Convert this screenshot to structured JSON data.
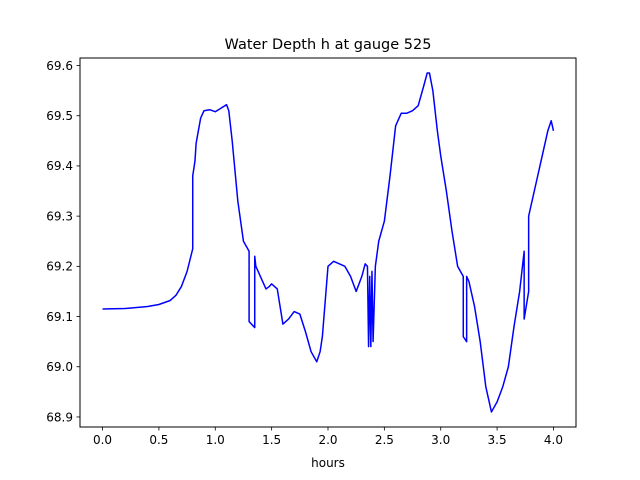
{
  "chart_data": {
    "type": "line",
    "title": "Water Depth h at gauge 525",
    "xlabel": "hours",
    "ylabel": "",
    "xlim": [
      -0.2,
      4.2
    ],
    "ylim": [
      68.88,
      69.615
    ],
    "x_ticks": [
      "0.0",
      "0.5",
      "1.0",
      "1.5",
      "2.0",
      "2.5",
      "3.0",
      "3.5",
      "4.0"
    ],
    "y_ticks": [
      "68.9",
      "69.0",
      "69.1",
      "69.2",
      "69.3",
      "69.4",
      "69.5",
      "69.6"
    ],
    "grid": false,
    "series": [
      {
        "color": "#0000ff",
        "x": [
          0.0,
          0.2,
          0.4,
          0.5,
          0.6,
          0.65,
          0.7,
          0.75,
          0.8,
          0.8,
          0.82,
          0.83,
          0.85,
          0.87,
          0.9,
          0.95,
          1.0,
          1.05,
          1.1,
          1.12,
          1.15,
          1.2,
          1.25,
          1.3,
          1.3,
          1.35,
          1.35,
          1.36,
          1.38,
          1.4,
          1.45,
          1.48,
          1.5,
          1.55,
          1.6,
          1.65,
          1.7,
          1.75,
          1.8,
          1.85,
          1.9,
          1.93,
          1.95,
          2.0,
          2.05,
          2.1,
          2.15,
          2.2,
          2.25,
          2.3,
          2.33,
          2.35,
          2.36,
          2.37,
          2.38,
          2.39,
          2.4,
          2.42,
          2.45,
          2.5,
          2.55,
          2.6,
          2.65,
          2.7,
          2.75,
          2.8,
          2.85,
          2.88,
          2.9,
          2.93,
          2.97,
          3.0,
          3.05,
          3.1,
          3.15,
          3.2,
          3.2,
          3.23,
          3.23,
          3.25,
          3.3,
          3.35,
          3.4,
          3.45,
          3.5,
          3.55,
          3.6,
          3.65,
          3.7,
          3.74,
          3.74,
          3.78,
          3.78,
          3.82,
          3.85,
          3.9,
          3.95,
          3.98,
          4.0
        ],
        "y": [
          69.115,
          69.116,
          69.12,
          69.124,
          69.132,
          69.142,
          69.16,
          69.19,
          69.235,
          69.38,
          69.41,
          69.445,
          69.47,
          69.495,
          69.51,
          69.512,
          69.508,
          69.515,
          69.522,
          69.51,
          69.45,
          69.33,
          69.25,
          69.23,
          69.09,
          69.078,
          69.22,
          69.2,
          69.19,
          69.18,
          69.155,
          69.16,
          69.165,
          69.155,
          69.085,
          69.095,
          69.11,
          69.105,
          69.07,
          69.03,
          69.01,
          69.03,
          69.06,
          69.2,
          69.21,
          69.205,
          69.2,
          69.18,
          69.15,
          69.18,
          69.205,
          69.2,
          69.04,
          69.18,
          69.04,
          69.19,
          69.05,
          69.2,
          69.25,
          69.29,
          69.38,
          69.48,
          69.505,
          69.505,
          69.51,
          69.52,
          69.56,
          69.585,
          69.585,
          69.55,
          69.47,
          69.42,
          69.35,
          69.27,
          69.2,
          69.18,
          69.06,
          69.05,
          69.18,
          69.17,
          69.12,
          69.05,
          68.96,
          68.91,
          68.93,
          68.96,
          69.0,
          69.08,
          69.15,
          69.23,
          69.095,
          69.15,
          69.3,
          69.34,
          69.37,
          69.42,
          69.47,
          69.49,
          69.47
        ]
      }
    ]
  }
}
